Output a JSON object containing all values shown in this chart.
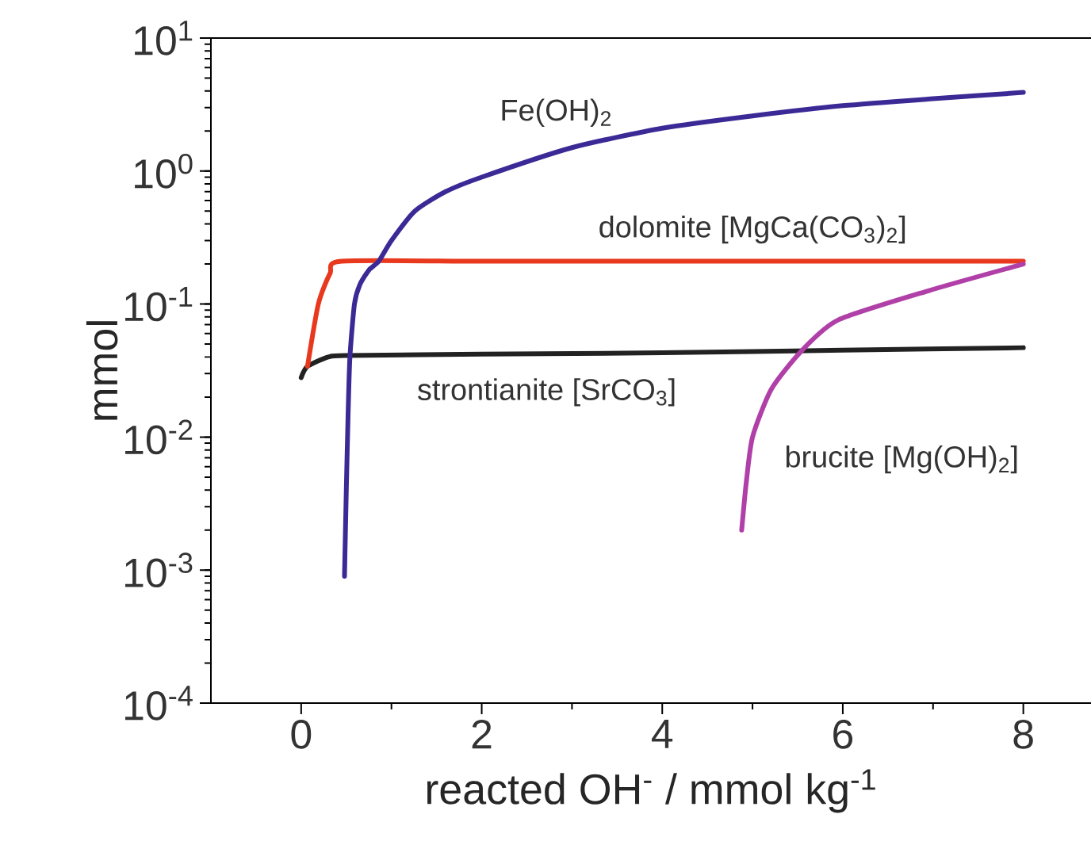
{
  "chart_data": {
    "type": "line",
    "xlabel": "reacted OH$^{-}$ / mmol kg$^{-1}$",
    "ylabel": "mmol",
    "log": "y",
    "xlim": [
      -1,
      8.75
    ],
    "ylim": [
      0.0001,
      10
    ],
    "xticks": [
      0,
      2,
      4,
      6,
      8
    ],
    "yticks": [
      {
        "value": 0.0001,
        "label": "10$^{-4}$"
      },
      {
        "value": 0.001,
        "label": "10$^{-3}$"
      },
      {
        "value": 0.01,
        "label": "10$^{-2}$"
      },
      {
        "value": 0.1,
        "label": "10$^{-1}$"
      },
      {
        "value": 1,
        "label": "10$^{0}$"
      },
      {
        "value": 10,
        "label": "10$^{1}$"
      }
    ],
    "grid": false,
    "legend": false,
    "marker": "none",
    "line_style": "solid",
    "series": [
      {
        "name": "strontianite [SrCO$_{3}$]",
        "color": "#222222",
        "x": [
          0,
          0.07,
          0.3,
          0.5,
          2,
          4,
          6,
          8
        ],
        "values": [
          0.028,
          0.034,
          0.04,
          0.041,
          0.042,
          0.043,
          0.045,
          0.047
        ]
      },
      {
        "name": "dolomite [MgCa(CO$_{3}$)$_{2}$]",
        "color": "#e8391e",
        "x": [
          0.07,
          0.19,
          0.32,
          0.45,
          2,
          4,
          6,
          8
        ],
        "values": [
          0.034,
          0.1,
          0.17,
          0.21,
          0.21,
          0.21,
          0.21,
          0.21
        ]
      },
      {
        "name": "Fe(OH)$_{2}$",
        "color": "#3b2a95",
        "x": [
          0.48,
          0.5,
          0.52,
          0.54,
          0.59,
          0.65,
          0.75,
          0.86,
          1.0,
          1.26,
          1.6,
          2,
          3,
          4,
          5,
          6,
          7,
          8
        ],
        "values": [
          0.0009,
          0.004,
          0.015,
          0.04,
          0.1,
          0.14,
          0.18,
          0.21,
          0.3,
          0.5,
          0.7,
          0.9,
          1.5,
          2.1,
          2.6,
          3.1,
          3.5,
          3.9
        ]
      },
      {
        "name": "brucite [Mg(OH)$_{2}$]",
        "color": "#b040a8",
        "x": [
          4.88,
          4.93,
          5.0,
          5.21,
          5.55,
          5.95,
          6.95,
          8
        ],
        "values": [
          0.002,
          0.0045,
          0.01,
          0.023,
          0.045,
          0.076,
          0.126,
          0.2
        ]
      }
    ]
  }
}
